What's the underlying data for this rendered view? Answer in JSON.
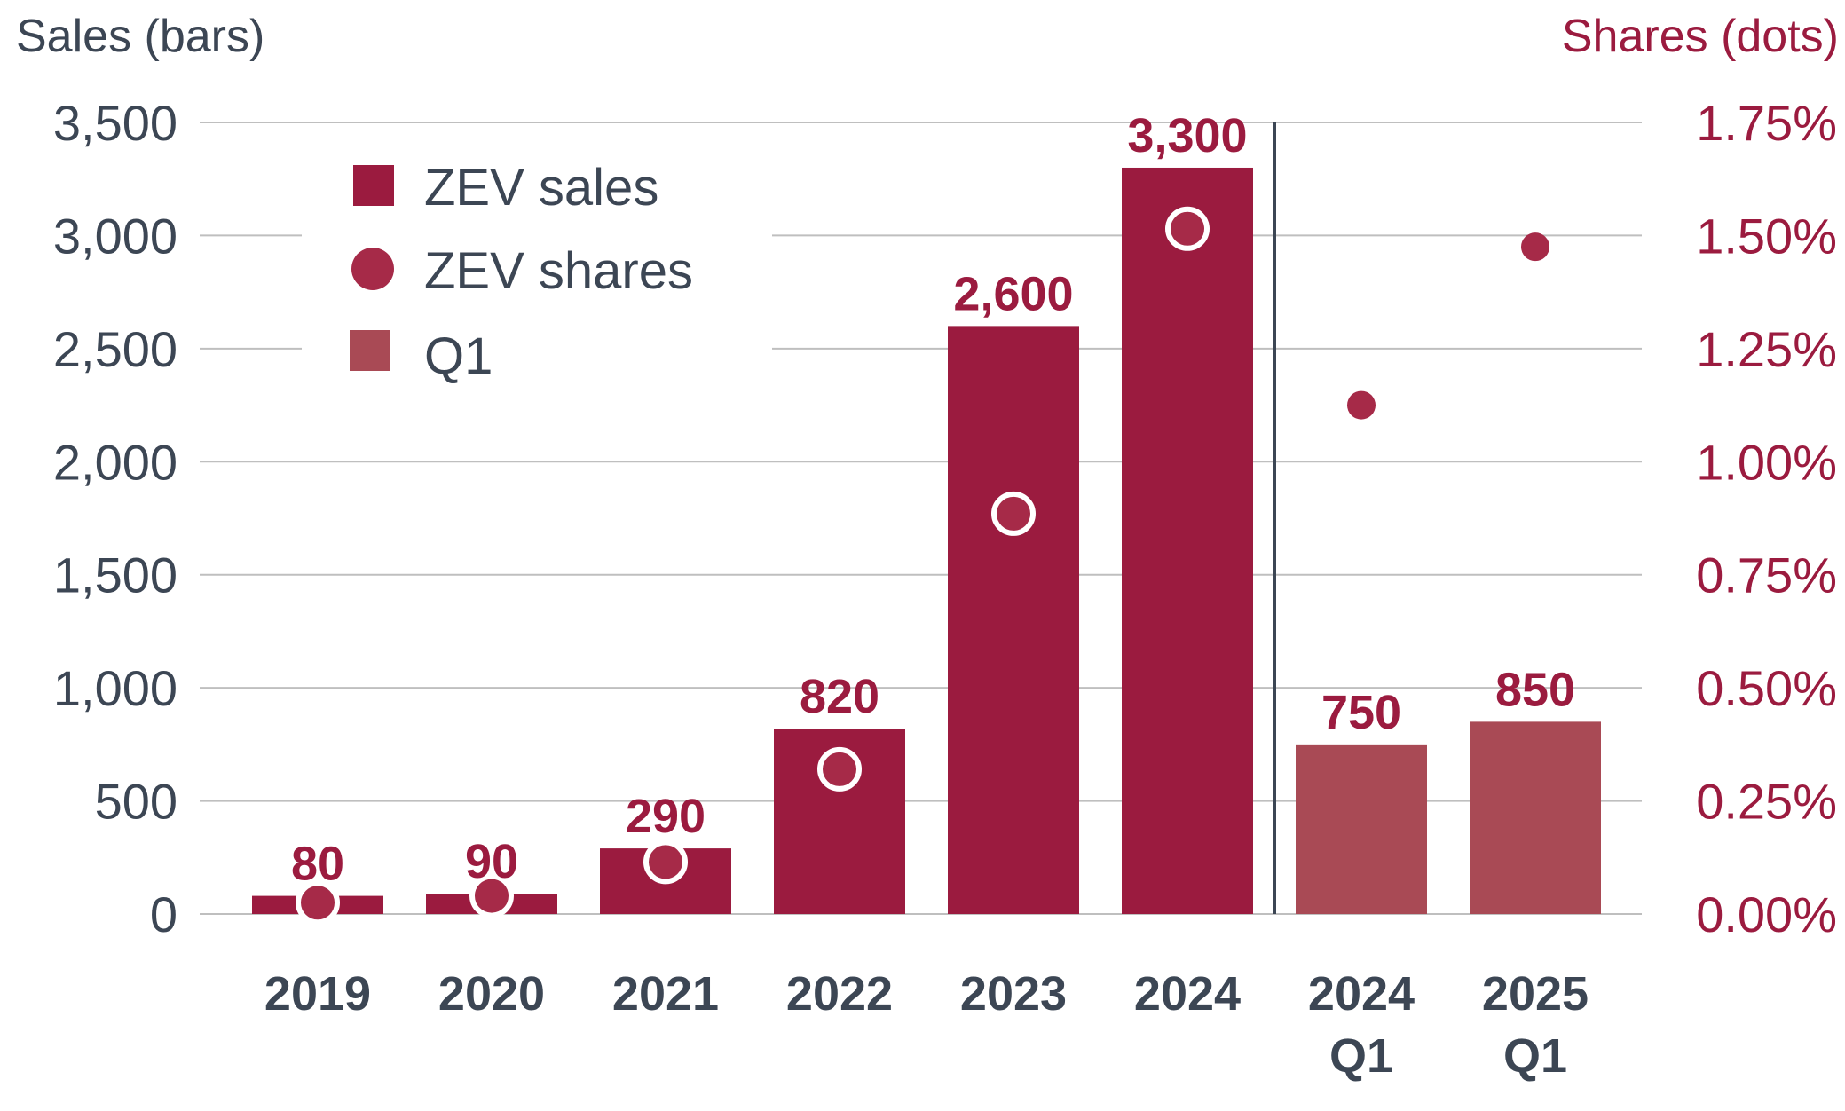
{
  "chart_data": {
    "type": "bar",
    "categories": [
      {
        "line1": "2019",
        "line2": ""
      },
      {
        "line1": "2020",
        "line2": ""
      },
      {
        "line1": "2021",
        "line2": ""
      },
      {
        "line1": "2022",
        "line2": ""
      },
      {
        "line1": "2023",
        "line2": ""
      },
      {
        "line1": "2024",
        "line2": ""
      },
      {
        "line1": "2024",
        "line2": "Q1"
      },
      {
        "line1": "2025",
        "line2": "Q1"
      }
    ],
    "series": [
      {
        "name": "ZEV sales",
        "axis": "left",
        "kind": "bar",
        "values": [
          80,
          90,
          290,
          820,
          2600,
          3300,
          750,
          850
        ],
        "labels": [
          "80",
          "90",
          "290",
          "820",
          "2,600",
          "3,300",
          "750",
          "850"
        ]
      },
      {
        "name": "ZEV shares",
        "axis": "right",
        "kind": "dot",
        "values": [
          0.025,
          0.04,
          0.115,
          0.32,
          0.885,
          1.515,
          1.125,
          1.475
        ]
      }
    ],
    "q1_legend": "Q1",
    "q1_categories": [
      6,
      7
    ],
    "divider_after_category": 5,
    "left_axis": {
      "title": "Sales (bars)",
      "ylim": [
        0,
        3500
      ],
      "ticks": [
        0,
        500,
        1000,
        1500,
        2000,
        2500,
        3000,
        3500
      ],
      "tick_labels": [
        "0",
        "500",
        "1,000",
        "1,500",
        "2,000",
        "2,500",
        "3,000",
        "3,500"
      ]
    },
    "right_axis": {
      "title": "Shares (dots)",
      "ylim": [
        0,
        1.75
      ],
      "ticks": [
        0,
        0.25,
        0.5,
        0.75,
        1.0,
        1.25,
        1.5,
        1.75
      ],
      "tick_labels": [
        "0.00%",
        "0.25%",
        "0.50%",
        "0.75%",
        "1.00%",
        "1.25%",
        "1.50%",
        "1.75%"
      ]
    },
    "grid": "horizontal",
    "legend_position": "top-left",
    "colors": {
      "bar": "#9b1b3f",
      "bar_q1": "#a94a55",
      "dot": "#a62a48",
      "axis_text": "#3c4654",
      "right_axis_text": "#9b1b3f",
      "grid": "#bfbfbf",
      "divider": "#3c4654"
    }
  }
}
